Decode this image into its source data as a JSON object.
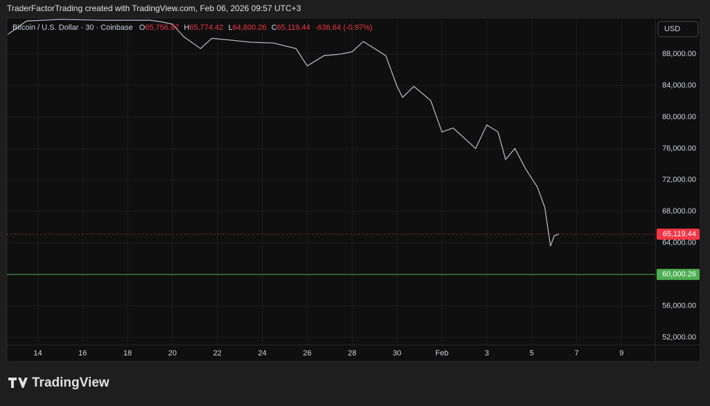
{
  "header": "TraderFactorTrading created with TradingView.com, Feb 06, 2026 09:57 UTC+3",
  "legend": {
    "symbol": "Bitcoin / U.S. Dollar · 30 · Coinbase",
    "o_label": "O",
    "open": "65,756.87",
    "h_label": "H",
    "high": "65,774.42",
    "l_label": "L",
    "low": "64,800.26",
    "c_label": "C",
    "close": "65,119.44",
    "change": "-636.64 (-0.97%)"
  },
  "currency_button": "USD",
  "brand": "TradingView",
  "chart_data": {
    "type": "line",
    "x": [
      "2026-01-12T16:00",
      "2026-01-13T12:00",
      "2026-01-15T00:00",
      "2026-01-17T00:00",
      "2026-01-19T00:00",
      "2026-01-19T12:00",
      "2026-01-20T00:00",
      "2026-01-20T12:00",
      "2026-01-21T06:00",
      "2026-01-21T18:00",
      "2026-01-22T12:00",
      "2026-01-23T12:00",
      "2026-01-24T12:00",
      "2026-01-25T12:00",
      "2026-01-26T00:00",
      "2026-01-26T18:00",
      "2026-01-27T12:00",
      "2026-01-28T00:00",
      "2026-01-28T12:00",
      "2026-01-29T00:00",
      "2026-01-29T12:00",
      "2026-01-30T00:00",
      "2026-01-30T06:00",
      "2026-01-30T18:00",
      "2026-01-31T12:00",
      "2026-02-01T00:00",
      "2026-02-01T12:00",
      "2026-02-02T12:00",
      "2026-02-03T00:00",
      "2026-02-03T12:00",
      "2026-02-03T20:00",
      "2026-02-04T06:00",
      "2026-02-04T18:00",
      "2026-02-05T06:00",
      "2026-02-05T14:00",
      "2026-02-05T20:00",
      "2026-02-06T00:00",
      "2026-02-06T05:00"
    ],
    "series": [
      {
        "name": "Bitcoin / U.S. Dollar",
        "color": "#b2b5be",
        "values": [
          90500,
          92200,
          92400,
          92300,
          92300,
          92100,
          91800,
          90200,
          88700,
          90000,
          89800,
          89500,
          89400,
          88700,
          86500,
          87800,
          88000,
          88300,
          89600,
          88700,
          87800,
          83900,
          82500,
          83900,
          82100,
          78100,
          78600,
          76000,
          79000,
          78100,
          74600,
          76000,
          73300,
          71100,
          68500,
          63600,
          64900,
          65119.44
        ]
      }
    ],
    "xlim": [
      "2026-01-12T15:00",
      "2026-02-10T12:00"
    ],
    "xticks": [
      {
        "value": "2026-01-14T00:00",
        "label": "14"
      },
      {
        "value": "2026-01-16T00:00",
        "label": "16"
      },
      {
        "value": "2026-01-18T00:00",
        "label": "18"
      },
      {
        "value": "2026-01-20T00:00",
        "label": "20"
      },
      {
        "value": "2026-01-22T00:00",
        "label": "22"
      },
      {
        "value": "2026-01-24T00:00",
        "label": "24"
      },
      {
        "value": "2026-01-26T00:00",
        "label": "26"
      },
      {
        "value": "2026-01-28T00:00",
        "label": "28"
      },
      {
        "value": "2026-01-30T00:00",
        "label": "30"
      },
      {
        "value": "2026-02-01T00:00",
        "label": "Feb"
      },
      {
        "value": "2026-02-03T00:00",
        "label": "3"
      },
      {
        "value": "2026-02-05T00:00",
        "label": "5"
      },
      {
        "value": "2026-02-07T00:00",
        "label": "7"
      },
      {
        "value": "2026-02-09T00:00",
        "label": "9"
      }
    ],
    "ylim": [
      51030,
      92580
    ],
    "yticks": [
      {
        "value": 52000,
        "label": "52,000.00"
      },
      {
        "value": 56000,
        "label": "56,000.00"
      },
      {
        "value": 60000,
        "label": "60,000.00"
      },
      {
        "value": 64000,
        "label": "64,000.00"
      },
      {
        "value": 68000,
        "label": "68,000.00"
      },
      {
        "value": 72000,
        "label": "72,000.00"
      },
      {
        "value": 76000,
        "label": "76,000.00"
      },
      {
        "value": 80000,
        "label": "80,000.00"
      },
      {
        "value": 84000,
        "label": "84,000.00"
      },
      {
        "value": 88000,
        "label": "88,000.00"
      }
    ],
    "price_lines": [
      {
        "value": 65119.44,
        "label": "65,119.44",
        "color": "#f23645",
        "style": "dotted"
      },
      {
        "value": 60000.26,
        "label": "60,000.26",
        "color": "#4caf50",
        "style": "solid"
      }
    ],
    "grid": true
  }
}
